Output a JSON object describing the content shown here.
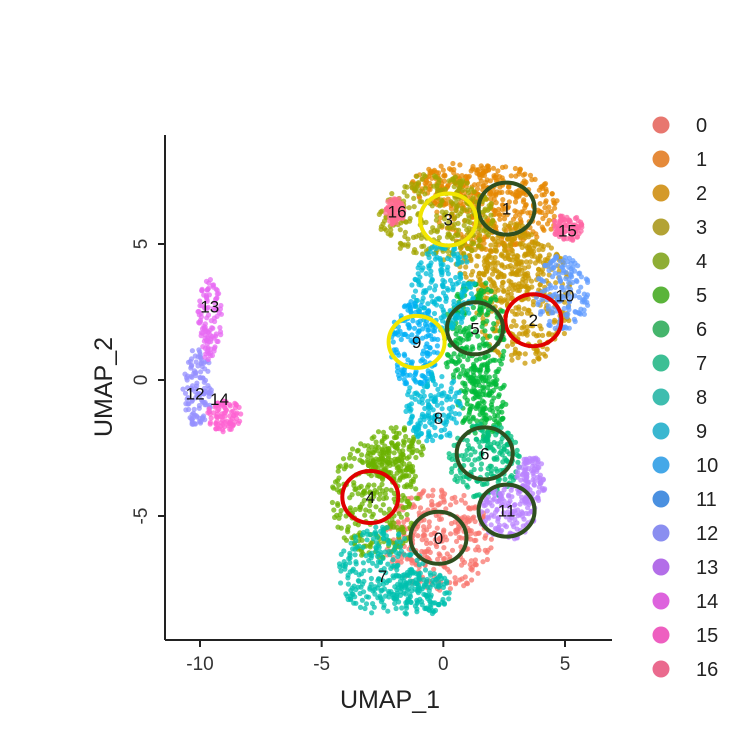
{
  "chart_data": {
    "type": "scatter",
    "xlabel": "UMAP_1",
    "ylabel": "UMAP_2",
    "xlim": [
      -11.5,
      7.0
    ],
    "ylim": [
      -9.8,
      9.0
    ],
    "xticks": [
      -10,
      -5,
      0,
      5
    ],
    "yticks": [
      5,
      0,
      -5
    ],
    "grid": false,
    "legend_position": "right",
    "clusters": [
      {
        "name": "0",
        "color": "#F8766D",
        "label_pos": [
          -0.2,
          -5.8
        ],
        "highlight": "#2f4f1f"
      },
      {
        "name": "1",
        "color": "#E58700",
        "label_pos": [
          2.6,
          6.3
        ],
        "highlight": "#2f4f1f"
      },
      {
        "name": "2",
        "color": "#C99800",
        "label_pos": [
          3.7,
          2.2
        ],
        "highlight": "#e00000"
      },
      {
        "name": "3",
        "color": "#A3A500",
        "label_pos": [
          0.2,
          5.9
        ],
        "highlight": "#f2e600"
      },
      {
        "name": "4",
        "color": "#6BB100",
        "label_pos": [
          -3.0,
          -4.3
        ],
        "highlight": "#e00000"
      },
      {
        "name": "5",
        "color": "#00BA38",
        "label_pos": [
          1.3,
          1.9
        ],
        "highlight": "#2f4f1f"
      },
      {
        "name": "6",
        "color": "#00BF7D",
        "label_pos": [
          1.7,
          -2.7
        ],
        "highlight": "#2f4f1f"
      },
      {
        "name": "7",
        "color": "#00C0AF",
        "label_pos": [
          -2.5,
          -7.2
        ],
        "highlight": ""
      },
      {
        "name": "8",
        "color": "#00BCD8",
        "label_pos": [
          -0.2,
          -1.4
        ],
        "highlight": ""
      },
      {
        "name": "9",
        "color": "#00B0F6",
        "label_pos": [
          -1.1,
          1.4
        ],
        "highlight": "#f2e600"
      },
      {
        "name": "10",
        "color": "#619CFF",
        "label_pos": [
          5.0,
          3.1
        ],
        "highlight": ""
      },
      {
        "name": "11",
        "color": "#B983FF",
        "label_pos": [
          2.6,
          -4.8
        ],
        "highlight": "#2f4f1f"
      },
      {
        "name": "12",
        "color": "#9590FF",
        "label_pos": [
          -10.2,
          -0.5
        ],
        "highlight": ""
      },
      {
        "name": "13",
        "color": "#E76BF3",
        "label_pos": [
          -9.6,
          2.7
        ],
        "highlight": ""
      },
      {
        "name": "14",
        "color": "#FD61D1",
        "label_pos": [
          -9.2,
          -0.7
        ],
        "highlight": ""
      },
      {
        "name": "15",
        "color": "#FF67A4",
        "label_pos": [
          5.1,
          5.5
        ],
        "highlight": ""
      },
      {
        "name": "16",
        "color": "#FF6C91",
        "label_pos": [
          -1.9,
          6.2
        ],
        "highlight": ""
      }
    ]
  },
  "legend_colors": [
    "#e8776f",
    "#e58a3a",
    "#d49a2a",
    "#b3a334",
    "#8fae35",
    "#5ab43a",
    "#45b56c",
    "#3dbf94",
    "#3ebdaf",
    "#3ab7d0",
    "#45a8e8",
    "#4a90e0",
    "#8a8ef0",
    "#b36ee8",
    "#dd63dd",
    "#ee5fc0",
    "#ea6a8e"
  ]
}
